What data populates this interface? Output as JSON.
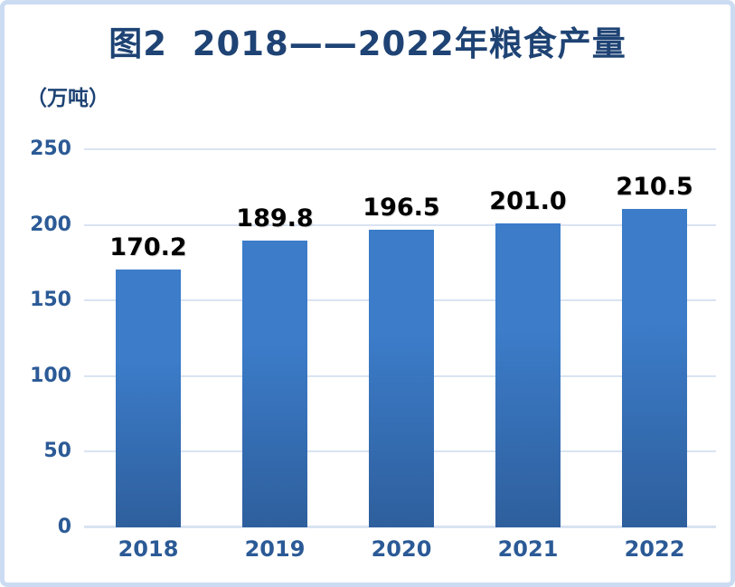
{
  "chart_data": {
    "type": "bar",
    "title": "图2  2018——2022年粮食产量",
    "unit_label": "（万吨）",
    "xlabel": "",
    "ylabel": "（万吨）",
    "categories": [
      "2018",
      "2019",
      "2020",
      "2021",
      "2022"
    ],
    "values": [
      170.2,
      189.8,
      196.5,
      201.0,
      210.5
    ],
    "value_labels": [
      "170.2",
      "189.8",
      "196.5",
      "201.0",
      "210.5"
    ],
    "ylim": [
      0,
      250
    ],
    "yticks": [
      0,
      50,
      100,
      150,
      200,
      250
    ],
    "grid": "horizontal",
    "legend": "none"
  },
  "colors": {
    "title": "#1e4374",
    "axis_label": "#2b5a96",
    "grid": "#d9e3f2",
    "bar_top": "#3c7cc9",
    "bar_bottom": "#2e5f9d",
    "data_label": "#000000",
    "frame_border": "#cbdcf2",
    "background": "#ffffff"
  }
}
